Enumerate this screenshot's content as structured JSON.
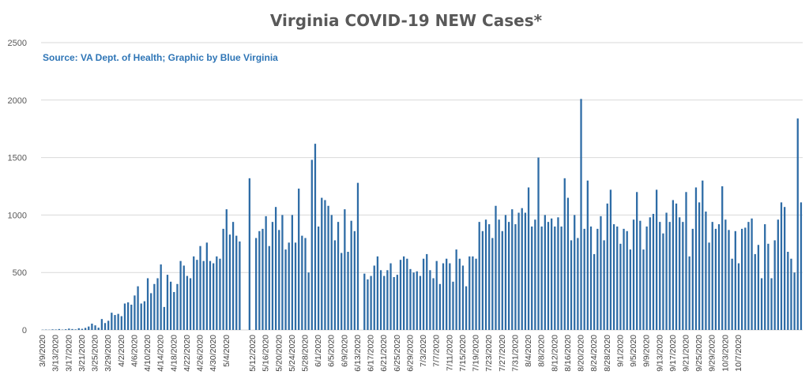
{
  "chart_data": {
    "type": "bar",
    "title": "Virginia COVID-19 NEW Cases*",
    "source_note": "Source: VA Dept. of Health; Graphic by Blue Virginia",
    "xlabel": "",
    "ylabel": "",
    "ylim": [
      0,
      2500
    ],
    "yticks": [
      "0",
      "500",
      "1000",
      "1500",
      "2000",
      "2500"
    ],
    "grid": true,
    "legend": "none",
    "bar_color": "#2e6ca6",
    "xtick_labels": [
      "3/9/2020",
      "3/13/2020",
      "3/17/2020",
      "3/21/2020",
      "3/25/2020",
      "3/29/2020",
      "4/2/2020",
      "4/6/2020",
      "4/10/2020",
      "4/14/2020",
      "4/18/2020",
      "4/22/2020",
      "4/26/2020",
      "4/30/2020",
      "5/4/2020",
      "",
      "5/12/2020",
      "5/16/2020",
      "5/20/2020",
      "5/24/2020",
      "5/28/2020",
      "6/1/2020",
      "6/5/2020",
      "6/9/2020",
      "6/13/2020",
      "6/17/2020",
      "6/21/2020",
      "6/25/2020",
      "6/29/2020",
      "7/3/2020",
      "7/7/2020",
      "7/11/2020",
      "7/15/2020",
      "7/19/2020",
      "7/23/2020",
      "7/27/2020",
      "7/31/2020",
      "8/4/2020",
      "8/8/2020",
      "8/12/2020",
      "8/16/2020",
      "8/20/2020",
      "8/24/2020",
      "8/28/2020",
      "9/1/2020",
      "9/5/2020",
      "9/9/2020",
      "9/13/2020",
      "9/17/2020",
      "9/21/2020",
      "9/25/2020",
      "9/29/2020",
      "10/3/2020",
      "10/7/2020"
    ],
    "values": [
      2,
      3,
      2,
      5,
      4,
      8,
      3,
      6,
      12,
      8,
      5,
      15,
      10,
      18,
      30,
      55,
      40,
      20,
      95,
      60,
      80,
      150,
      130,
      140,
      120,
      230,
      240,
      220,
      300,
      380,
      230,
      250,
      450,
      320,
      400,
      450,
      570,
      200,
      480,
      420,
      330,
      400,
      600,
      560,
      470,
      450,
      640,
      610,
      730,
      600,
      760,
      600,
      580,
      640,
      620,
      880,
      1050,
      830,
      940,
      820,
      770,
      0,
      0,
      1320,
      0,
      800,
      860,
      880,
      990,
      730,
      940,
      1070,
      870,
      1000,
      700,
      760,
      1000,
      760,
      1230,
      820,
      800,
      500,
      1480,
      1620,
      900,
      1150,
      1130,
      1080,
      1000,
      780,
      940,
      670,
      1050,
      680,
      950,
      860,
      1280,
      0,
      490,
      440,
      470,
      560,
      640,
      520,
      470,
      520,
      580,
      460,
      480,
      610,
      640,
      620,
      530,
      500,
      510,
      470,
      620,
      660,
      520,
      450,
      600,
      400,
      580,
      620,
      580,
      420,
      700,
      620,
      560,
      380,
      640,
      640,
      620,
      940,
      860,
      960,
      920,
      800,
      1080,
      960,
      860,
      1000,
      940,
      1050,
      920,
      1020,
      1060,
      1020,
      1240,
      900,
      960,
      1500,
      900,
      1000,
      940,
      970,
      900,
      980,
      900,
      1320,
      1150,
      780,
      1000,
      800,
      2010,
      880,
      1300,
      900,
      660,
      880,
      990,
      780,
      1100,
      1220,
      920,
      900,
      750,
      880,
      860,
      700,
      960,
      1200,
      950,
      700,
      900,
      980,
      1010,
      1220,
      940,
      840,
      1020,
      940,
      1130,
      1100,
      980,
      940,
      1200,
      640,
      880,
      1240,
      1110,
      1300,
      1030,
      760,
      940,
      880,
      920,
      1250,
      960,
      870,
      620,
      860,
      580,
      880,
      890,
      940,
      970,
      660,
      740,
      450,
      920,
      750,
      450,
      780,
      960,
      1110,
      1070,
      680,
      620,
      500,
      1840,
      1110
    ]
  }
}
